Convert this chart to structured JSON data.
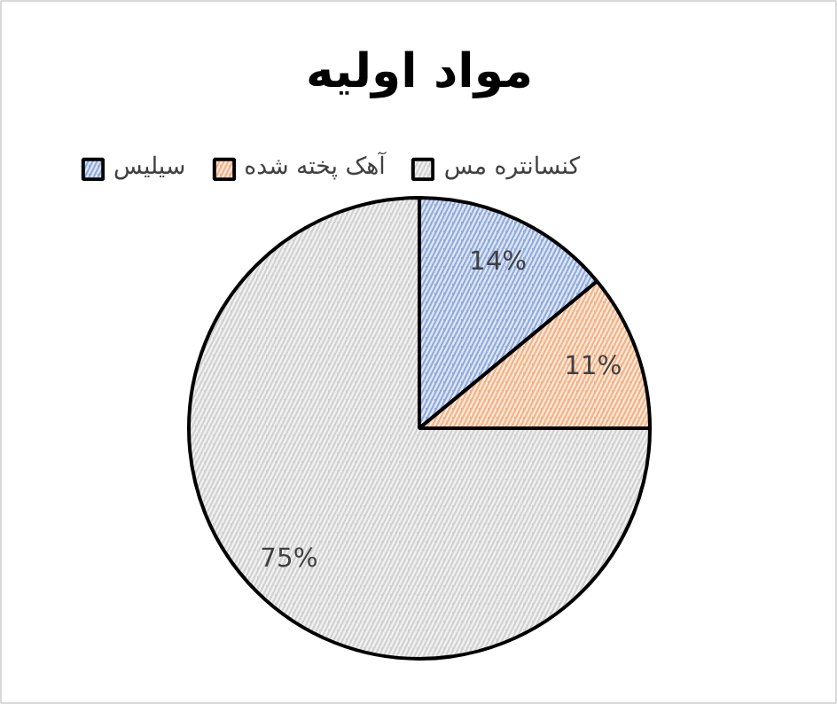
{
  "chart_data": {
    "type": "pie",
    "title": "مواد اولیه",
    "categories": [
      "سیلیس",
      "آهک پخته شده",
      "کنسانتره مس"
    ],
    "values": [
      14,
      11,
      75
    ],
    "colors": [
      "#8faadc",
      "#f4b183",
      "#d0d0d0"
    ],
    "value_labels": [
      "14%",
      "11%",
      "75%"
    ],
    "legend": "top"
  }
}
